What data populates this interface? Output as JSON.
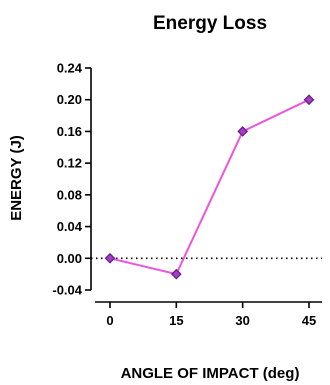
{
  "chart_data": {
    "type": "line",
    "title": "Energy Loss",
    "xlabel": "ANGLE OF IMPACT (deg)",
    "ylabel": "ENERGY (J)",
    "categories": [
      "0",
      "15",
      "30",
      "45"
    ],
    "x": [
      0,
      15,
      30,
      45
    ],
    "series": [
      {
        "values": [
          0.0,
          -0.02,
          0.16,
          0.2
        ]
      }
    ],
    "ylim": [
      -0.04,
      0.24
    ],
    "yticks": [
      -0.04,
      0.0,
      0.04,
      0.08,
      0.12,
      0.16,
      0.2,
      0.24
    ],
    "ytick_labels": [
      "-0.04",
      "0.00",
      "0.04",
      "0.08",
      "0.12",
      "0.16",
      "0.20",
      "0.24"
    ],
    "grid": false,
    "zero_line": "dotted",
    "colors": {
      "line": "#ee55dd",
      "marker_fill": "#a040c0",
      "marker_edge": "#6a1a8a"
    }
  }
}
